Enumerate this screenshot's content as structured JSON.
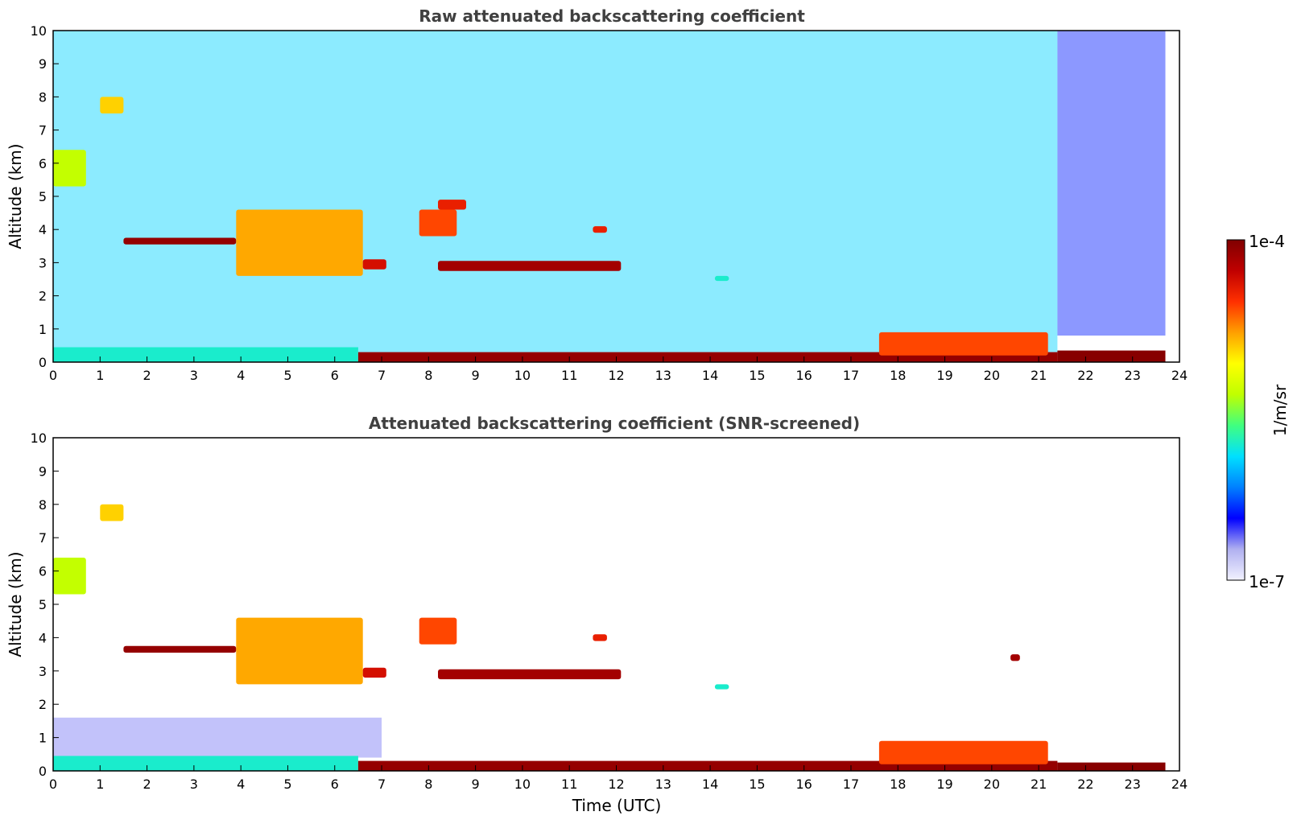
{
  "chart_data": [
    {
      "type": "heatmap",
      "title": "Raw attenuated backscattering coefficient",
      "xlabel": "",
      "ylabel": "Altitude (km)",
      "xlim": [
        0,
        24
      ],
      "ylim": [
        0,
        10
      ],
      "x_ticks": [
        "0",
        "1",
        "2",
        "3",
        "4",
        "5",
        "6",
        "7",
        "8",
        "9",
        "10",
        "11",
        "12",
        "13",
        "14",
        "15",
        "16",
        "17",
        "18",
        "19",
        "20",
        "21",
        "22",
        "23",
        "24"
      ],
      "y_ticks": [
        "0",
        "1",
        "2",
        "3",
        "4",
        "5",
        "6",
        "7",
        "8",
        "9",
        "10"
      ],
      "data_end_time": 23.7,
      "features": [
        {
          "kind": "noise_background",
          "t0": 0,
          "t1": 21.4,
          "z0": 0.3,
          "z1": 10,
          "level": 0.35
        },
        {
          "kind": "noise_background",
          "t0": 21.4,
          "t1": 23.7,
          "z0": 0.8,
          "z1": 10,
          "level": 0.2
        },
        {
          "kind": "cloud",
          "t0": 0.0,
          "t1": 0.7,
          "z0": 5.3,
          "z1": 6.4,
          "level": 0.55
        },
        {
          "kind": "cloud",
          "t0": 1.0,
          "t1": 1.5,
          "z0": 7.5,
          "z1": 8.0,
          "level": 0.68
        },
        {
          "kind": "cloud",
          "t0": 1.5,
          "t1": 3.9,
          "z0": 3.55,
          "z1": 3.75,
          "level": 0.97
        },
        {
          "kind": "cloud",
          "t0": 3.9,
          "t1": 6.6,
          "z0": 2.6,
          "z1": 4.6,
          "level": 0.72
        },
        {
          "kind": "cloud",
          "t0": 6.6,
          "t1": 7.1,
          "z0": 2.8,
          "z1": 3.1,
          "level": 0.88
        },
        {
          "kind": "cloud",
          "t0": 7.8,
          "t1": 8.6,
          "z0": 3.8,
          "z1": 4.6,
          "level": 0.8
        },
        {
          "kind": "cloud",
          "t0": 8.2,
          "t1": 8.8,
          "z0": 4.6,
          "z1": 4.9,
          "level": 0.85
        },
        {
          "kind": "cloud",
          "t0": 8.2,
          "t1": 12.1,
          "z0": 2.75,
          "z1": 3.05,
          "level": 0.95
        },
        {
          "kind": "cloud",
          "t0": 11.5,
          "t1": 11.8,
          "z0": 3.9,
          "z1": 4.1,
          "level": 0.85
        },
        {
          "kind": "cloud",
          "t0": 14.1,
          "t1": 14.4,
          "z0": 2.45,
          "z1": 2.6,
          "level": 0.4
        },
        {
          "kind": "boundary_layer",
          "t0": 0,
          "t1": 6.5,
          "z0": 0,
          "z1": 0.45,
          "level": 0.4
        },
        {
          "kind": "boundary_layer",
          "t0": 6.5,
          "t1": 21.4,
          "z0": 0,
          "z1": 0.3,
          "level": 0.97
        },
        {
          "kind": "cloud",
          "t0": 17.6,
          "t1": 21.2,
          "z0": 0.2,
          "z1": 0.9,
          "level": 0.8
        },
        {
          "kind": "boundary_layer",
          "t0": 21.4,
          "t1": 23.7,
          "z0": 0,
          "z1": 0.35,
          "level": 0.99
        }
      ]
    },
    {
      "type": "heatmap",
      "title": "Attenuated backscattering coefficient (SNR-screened)",
      "xlabel": "Time (UTC)",
      "ylabel": "Altitude (km)",
      "xlim": [
        0,
        24
      ],
      "ylim": [
        0,
        10
      ],
      "x_ticks": [
        "0",
        "1",
        "2",
        "3",
        "4",
        "5",
        "6",
        "7",
        "8",
        "9",
        "10",
        "11",
        "12",
        "13",
        "14",
        "15",
        "16",
        "17",
        "18",
        "19",
        "20",
        "21",
        "22",
        "23",
        "24"
      ],
      "y_ticks": [
        "0",
        "1",
        "2",
        "3",
        "4",
        "5",
        "6",
        "7",
        "8",
        "9",
        "10"
      ],
      "data_end_time": 23.7,
      "features": [
        {
          "kind": "noise_background",
          "t0": 0,
          "t1": 7.0,
          "z0": 0.4,
          "z1": 1.6,
          "level": 0.12
        },
        {
          "kind": "cloud",
          "t0": 0.0,
          "t1": 0.7,
          "z0": 5.3,
          "z1": 6.4,
          "level": 0.55
        },
        {
          "kind": "cloud",
          "t0": 1.0,
          "t1": 1.5,
          "z0": 7.5,
          "z1": 8.0,
          "level": 0.68
        },
        {
          "kind": "cloud",
          "t0": 1.5,
          "t1": 3.9,
          "z0": 3.55,
          "z1": 3.75,
          "level": 0.97
        },
        {
          "kind": "cloud",
          "t0": 3.9,
          "t1": 6.6,
          "z0": 2.6,
          "z1": 4.6,
          "level": 0.72
        },
        {
          "kind": "cloud",
          "t0": 6.6,
          "t1": 7.1,
          "z0": 2.8,
          "z1": 3.1,
          "level": 0.88
        },
        {
          "kind": "cloud",
          "t0": 7.8,
          "t1": 8.6,
          "z0": 3.8,
          "z1": 4.6,
          "level": 0.8
        },
        {
          "kind": "cloud",
          "t0": 8.2,
          "t1": 12.1,
          "z0": 2.75,
          "z1": 3.05,
          "level": 0.95
        },
        {
          "kind": "cloud",
          "t0": 11.5,
          "t1": 11.8,
          "z0": 3.9,
          "z1": 4.1,
          "level": 0.85
        },
        {
          "kind": "cloud",
          "t0": 14.1,
          "t1": 14.4,
          "z0": 2.45,
          "z1": 2.6,
          "level": 0.4
        },
        {
          "kind": "cloud",
          "t0": 20.4,
          "t1": 20.6,
          "z0": 3.3,
          "z1": 3.5,
          "level": 0.95
        },
        {
          "kind": "boundary_layer",
          "t0": 0,
          "t1": 6.5,
          "z0": 0,
          "z1": 0.45,
          "level": 0.4
        },
        {
          "kind": "boundary_layer",
          "t0": 6.5,
          "t1": 21.4,
          "z0": 0,
          "z1": 0.3,
          "level": 0.97
        },
        {
          "kind": "cloud",
          "t0": 17.6,
          "t1": 21.2,
          "z0": 0.2,
          "z1": 0.9,
          "level": 0.8
        },
        {
          "kind": "boundary_layer",
          "t0": 21.4,
          "t1": 23.7,
          "z0": 0,
          "z1": 0.25,
          "level": 0.99
        }
      ]
    }
  ],
  "colorbar": {
    "label": "1/m/sr",
    "max_label": "1e-4",
    "min_label": "1e-7",
    "scale": "log",
    "colormap": [
      "#f2f2ff",
      "#b0b0f0",
      "#0000ff",
      "#0080ff",
      "#00e0ff",
      "#40ff80",
      "#c0ff00",
      "#ffff00",
      "#ffa000",
      "#ff3000",
      "#c00000",
      "#800000"
    ]
  }
}
